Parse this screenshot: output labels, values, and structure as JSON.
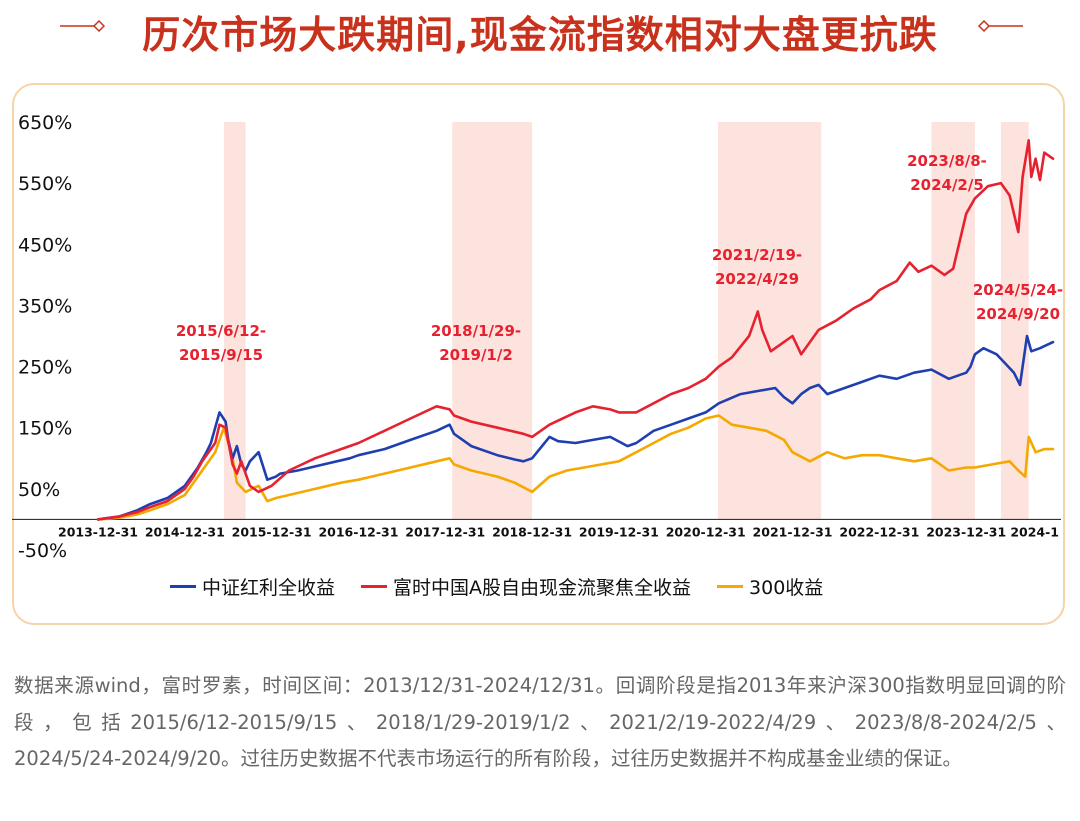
{
  "title": "历次市场大跌期间,现金流指数相对大盘更抗跌",
  "colors": {
    "accent": "#c8311c",
    "band": "#fde3dd",
    "dividend": "#1f3fb0",
    "ftse": "#e62230",
    "hs300": "#f5a800",
    "card_border": "#f6d4a8"
  },
  "chart_data": {
    "type": "line",
    "title": "历次市场大跌期间,现金流指数相对大盘更抗跌",
    "ylabel": "",
    "xlabel": "",
    "ylim": [
      -50,
      650
    ],
    "xlim": [
      2014.0,
      2025.0
    ],
    "y_ticks": [
      {
        "value": 650,
        "label": "650%"
      },
      {
        "value": 550,
        "label": "550%"
      },
      {
        "value": 450,
        "label": "450%"
      },
      {
        "value": 350,
        "label": "350%"
      },
      {
        "value": 250,
        "label": "250%"
      },
      {
        "value": 150,
        "label": "150%"
      },
      {
        "value": 50,
        "label": "50%"
      },
      {
        "value": -50,
        "label": "-50%"
      }
    ],
    "x_ticks": [
      {
        "value": 2014.0,
        "label": "2013-12-31"
      },
      {
        "value": 2015.0,
        "label": "2014-12-31"
      },
      {
        "value": 2016.0,
        "label": "2015-12-31"
      },
      {
        "value": 2017.0,
        "label": "2016-12-31"
      },
      {
        "value": 2018.0,
        "label": "2017-12-31"
      },
      {
        "value": 2019.0,
        "label": "2018-12-31"
      },
      {
        "value": 2020.0,
        "label": "2019-12-31"
      },
      {
        "value": 2021.0,
        "label": "2020-12-31"
      },
      {
        "value": 2022.0,
        "label": "2021-12-31"
      },
      {
        "value": 2023.0,
        "label": "2022-12-31"
      },
      {
        "value": 2024.0,
        "label": "2023-12-31"
      },
      {
        "value": 2025.0,
        "label": "2024-1"
      }
    ],
    "drawdown_periods": [
      {
        "label": "2015/6/12-\n2015/9/15",
        "start": 2015.45,
        "end": 2015.7
      },
      {
        "label": "2018/1/29-\n2019/1/2",
        "start": 2018.08,
        "end": 2019.0
      },
      {
        "label": "2021/2/19-\n2022/4/29",
        "start": 2021.14,
        "end": 2022.33
      },
      {
        "label": "2023/8/8-\n2024/2/5",
        "start": 2023.6,
        "end": 2024.1
      },
      {
        "label": "2024/5/24-\n2024/9/20",
        "start": 2024.4,
        "end": 2024.72
      }
    ],
    "series": [
      {
        "name": "中证红利全收益",
        "color": "#1f3fb0",
        "x": [
          2014.0,
          2014.1,
          2014.25,
          2014.45,
          2014.6,
          2014.8,
          2015.0,
          2015.1,
          2015.15,
          2015.25,
          2015.3,
          2015.35,
          2015.4,
          2015.47,
          2015.5,
          2015.55,
          2015.6,
          2015.65,
          2015.7,
          2015.75,
          2015.85,
          2015.95,
          2016.05,
          2016.1,
          2016.3,
          2016.6,
          2016.9,
          2017.0,
          2017.3,
          2017.6,
          2017.9,
          2018.05,
          2018.1,
          2018.3,
          2018.6,
          2018.8,
          2018.9,
          2019.0,
          2019.2,
          2019.3,
          2019.5,
          2019.7,
          2019.9,
          2020.1,
          2020.2,
          2020.4,
          2020.6,
          2020.8,
          2021.0,
          2021.15,
          2021.4,
          2021.6,
          2021.8,
          2021.9,
          2022.0,
          2022.1,
          2022.2,
          2022.3,
          2022.4,
          2022.6,
          2022.8,
          2023.0,
          2023.2,
          2023.4,
          2023.6,
          2023.8,
          2024.0,
          2024.05,
          2024.1,
          2024.2,
          2024.35,
          2024.45,
          2024.55,
          2024.62,
          2024.7,
          2024.75,
          2024.85,
          2025.0
        ],
        "y": [
          0,
          2,
          5,
          15,
          25,
          35,
          55,
          75,
          85,
          110,
          125,
          150,
          175,
          160,
          130,
          100,
          120,
          90,
          80,
          95,
          110,
          65,
          70,
          75,
          80,
          90,
          100,
          105,
          115,
          130,
          145,
          155,
          140,
          120,
          105,
          98,
          95,
          100,
          135,
          128,
          125,
          130,
          135,
          120,
          125,
          145,
          155,
          165,
          175,
          190,
          205,
          210,
          215,
          200,
          190,
          205,
          215,
          220,
          205,
          215,
          225,
          235,
          230,
          240,
          245,
          230,
          240,
          250,
          270,
          280,
          270,
          255,
          240,
          220,
          300,
          275,
          280,
          290
        ]
      },
      {
        "name": "富时中国A股自由现金流聚焦全收益",
        "color": "#e62230",
        "x": [
          2014.0,
          2014.1,
          2014.25,
          2014.45,
          2014.6,
          2014.8,
          2015.0,
          2015.1,
          2015.2,
          2015.35,
          2015.4,
          2015.47,
          2015.55,
          2015.6,
          2015.65,
          2015.75,
          2015.85,
          2016.0,
          2016.2,
          2016.5,
          2016.8,
          2017.0,
          2017.3,
          2017.6,
          2017.9,
          2018.05,
          2018.1,
          2018.3,
          2018.6,
          2018.9,
          2019.0,
          2019.2,
          2019.5,
          2019.7,
          2019.9,
          2020.0,
          2020.2,
          2020.4,
          2020.6,
          2020.8,
          2021.0,
          2021.15,
          2021.3,
          2021.5,
          2021.6,
          2021.65,
          2021.75,
          2021.9,
          2022.0,
          2022.1,
          2022.2,
          2022.3,
          2022.5,
          2022.7,
          2022.9,
          2023.0,
          2023.2,
          2023.35,
          2023.45,
          2023.6,
          2023.75,
          2023.85,
          2024.0,
          2024.1,
          2024.25,
          2024.4,
          2024.5,
          2024.6,
          2024.65,
          2024.72,
          2024.75,
          2024.8,
          2024.85,
          2024.9,
          2025.0
        ],
        "y": [
          0,
          2,
          5,
          12,
          20,
          30,
          50,
          70,
          95,
          125,
          155,
          150,
          90,
          75,
          95,
          55,
          45,
          55,
          80,
          100,
          115,
          125,
          145,
          165,
          185,
          180,
          170,
          160,
          150,
          140,
          135,
          155,
          175,
          185,
          180,
          175,
          175,
          190,
          205,
          215,
          230,
          250,
          265,
          300,
          340,
          310,
          275,
          290,
          300,
          270,
          290,
          310,
          325,
          345,
          360,
          375,
          390,
          420,
          405,
          415,
          400,
          410,
          500,
          525,
          545,
          550,
          530,
          470,
          560,
          620,
          560,
          590,
          555,
          600,
          590
        ]
      },
      {
        "name": "300收益",
        "color": "#f5a800",
        "x": [
          2014.0,
          2014.1,
          2014.25,
          2014.45,
          2014.6,
          2014.8,
          2015.0,
          2015.1,
          2015.2,
          2015.35,
          2015.45,
          2015.55,
          2015.6,
          2015.7,
          2015.85,
          2015.95,
          2016.05,
          2016.2,
          2016.5,
          2016.8,
          2017.0,
          2017.3,
          2017.6,
          2017.9,
          2018.05,
          2018.1,
          2018.3,
          2018.6,
          2018.8,
          2019.0,
          2019.2,
          2019.4,
          2019.6,
          2019.8,
          2020.0,
          2020.2,
          2020.4,
          2020.6,
          2020.8,
          2021.0,
          2021.15,
          2021.3,
          2021.5,
          2021.7,
          2021.9,
          2022.0,
          2022.2,
          2022.4,
          2022.6,
          2022.8,
          2023.0,
          2023.2,
          2023.4,
          2023.6,
          2023.8,
          2024.0,
          2024.1,
          2024.3,
          2024.5,
          2024.6,
          2024.68,
          2024.72,
          2024.8,
          2024.9,
          2025.0
        ],
        "y": [
          0,
          1,
          3,
          8,
          15,
          25,
          40,
          60,
          80,
          110,
          150,
          100,
          60,
          45,
          55,
          30,
          35,
          40,
          50,
          60,
          65,
          75,
          85,
          95,
          100,
          90,
          80,
          70,
          60,
          45,
          70,
          80,
          85,
          90,
          95,
          110,
          125,
          140,
          150,
          165,
          170,
          155,
          150,
          145,
          130,
          110,
          95,
          110,
          100,
          105,
          105,
          100,
          95,
          100,
          80,
          85,
          85,
          90,
          95,
          80,
          70,
          135,
          110,
          115,
          115
        ]
      }
    ]
  },
  "footnote": "数据来源wind，富时罗素，时间区间：2013/12/31-2024/12/31。回调阶段是指2013年来沪深300指数明显回调的阶段，包括2015/6/12-2015/9/15、2018/1/29-2019/1/2、2021/2/19-2022/4/29、2023/8/8-2024/2/5、2024/5/24-2024/9/20。过往历史数据不代表市场运行的所有阶段，过往历史数据并不构成基金业绩的保证。"
}
